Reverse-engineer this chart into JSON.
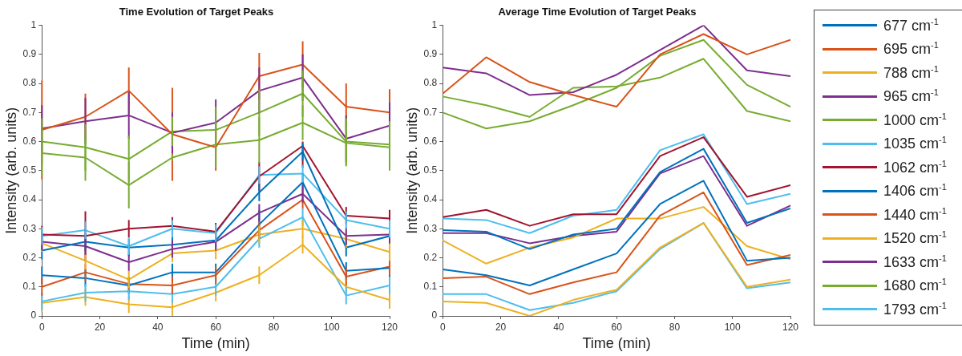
{
  "chart_data": [
    {
      "type": "line",
      "title": "Time Evolution of Target Peaks",
      "xlabel": "Time (min)",
      "ylabel": "Intensity (arb. units)",
      "x": [
        0,
        15,
        30,
        45,
        60,
        75,
        90,
        105,
        120
      ],
      "xlim": [
        0,
        120
      ],
      "xticks": [
        0,
        20,
        40,
        60,
        80,
        100,
        120
      ],
      "ylim": [
        0,
        1
      ],
      "yticks": [
        0,
        0.1,
        0.2,
        0.3,
        0.4,
        0.5,
        0.6,
        0.7,
        0.8,
        0.9,
        1
      ],
      "grid": false,
      "legend": false,
      "marker": "none",
      "line_style": "solid",
      "series": [
        {
          "color": "#0072bd",
          "values": [
            0.14,
            0.13,
            0.105,
            0.15,
            0.15,
            0.315,
            0.46,
            0.155,
            0.165
          ],
          "errors": [
            0.03,
            0.03,
            0.03,
            0.03,
            0.03,
            0.05,
            0.03,
            0.03,
            0.03
          ]
        },
        {
          "color": "#d95319",
          "values": [
            0.64,
            0.685,
            0.775,
            0.625,
            0.58,
            0.825,
            0.865,
            0.72,
            0.7
          ],
          "errors": [
            0.17,
            0.08,
            0.08,
            0.16,
            0.08,
            0.08,
            0.08,
            0.08,
            0.08
          ]
        },
        {
          "color": "#edb120",
          "values": [
            0.045,
            0.065,
            0.04,
            0.03,
            0.08,
            0.14,
            0.245,
            0.1,
            0.055
          ],
          "errors": [
            0.03,
            0.03,
            0.03,
            0.03,
            0.03,
            0.03,
            0.03,
            0.02,
            0.03
          ]
        },
        {
          "color": "#7e2f8e",
          "values": [
            0.645,
            0.67,
            0.69,
            0.63,
            0.665,
            0.775,
            0.82,
            0.61,
            0.655
          ],
          "errors": [
            0.08,
            0.08,
            0.08,
            0.07,
            0.08,
            0.08,
            0.08,
            0.08,
            0.08
          ]
        },
        {
          "color": "#77ac30",
          "values": [
            0.6,
            0.58,
            0.54,
            0.635,
            0.64,
            0.7,
            0.765,
            0.6,
            0.59
          ],
          "errors": [
            0.08,
            0.08,
            0.08,
            0.05,
            0.08,
            0.08,
            0.08,
            0.08,
            0.08
          ]
        },
        {
          "color": "#4dbeee",
          "values": [
            0.05,
            0.08,
            0.085,
            0.075,
            0.1,
            0.265,
            0.34,
            0.07,
            0.105
          ],
          "errors": [
            0.03,
            0.03,
            0.03,
            0.03,
            0.03,
            0.03,
            0.03,
            0.03,
            0.03
          ]
        },
        {
          "color": "#a2142f",
          "values": [
            0.28,
            0.275,
            0.3,
            0.31,
            0.29,
            0.48,
            0.585,
            0.345,
            0.335
          ],
          "errors": [
            0.03,
            0.085,
            0.03,
            0.03,
            0.03,
            0.05,
            [
              0.51,
              0.6
            ],
            0.03,
            0.03
          ]
        },
        {
          "color": "#0072bd",
          "values": [
            0.225,
            0.255,
            0.235,
            0.245,
            0.26,
            0.425,
            0.565,
            0.235,
            0.275
          ],
          "errors": [
            0.03,
            0.03,
            0.03,
            0.03,
            0.03,
            0.03,
            0.03,
            0.03,
            0.03
          ]
        },
        {
          "color": "#d95319",
          "values": [
            0.1,
            0.15,
            0.11,
            0.105,
            0.14,
            0.295,
            0.4,
            0.135,
            0.17
          ],
          "errors": [
            0.03,
            0.03,
            0.02,
            0.03,
            0.03,
            0.03,
            0.03,
            0.03,
            0.03
          ]
        },
        {
          "color": "#edb120",
          "values": [
            0.25,
            0.19,
            0.125,
            0.215,
            0.225,
            0.28,
            0.3,
            0.265,
            0.22
          ],
          "errors": [
            0.03,
            0.03,
            0.03,
            0.03,
            0.03,
            0.03,
            0.03,
            0.03,
            0.03
          ]
        },
        {
          "color": "#7e2f8e",
          "values": [
            0.255,
            0.24,
            0.185,
            0.23,
            0.255,
            0.355,
            0.42,
            0.275,
            0.28
          ],
          "errors": [
            0.03,
            0.03,
            0.03,
            0.03,
            0.03,
            0.03,
            0.03,
            0.03,
            0.03
          ]
        },
        {
          "color": "#77ac30",
          "values": [
            0.56,
            0.545,
            0.45,
            0.545,
            0.59,
            0.605,
            0.665,
            0.595,
            0.58
          ],
          "errors": [
            0.08,
            0.08,
            0.08,
            0.01,
            0.08,
            0.08,
            0.06,
            0.08,
            0.08
          ]
        },
        {
          "color": "#4dbeee",
          "values": [
            0.275,
            0.295,
            0.24,
            0.3,
            0.285,
            0.485,
            0.49,
            0.33,
            0.3
          ],
          "errors": [
            0.03,
            0.03,
            0.03,
            0.03,
            0.03,
            0.03,
            0.03,
            0.03,
            0.03
          ]
        }
      ]
    },
    {
      "type": "line",
      "title": "Average Time Evolution of Target Peaks",
      "xlabel": "Time (min)",
      "ylabel": "Intensity (arb. units)",
      "x": [
        0,
        15,
        30,
        45,
        60,
        75,
        90,
        105,
        120
      ],
      "xlim": [
        0,
        120
      ],
      "xticks": [
        0,
        20,
        40,
        60,
        80,
        100,
        120
      ],
      "ylim": [
        0,
        1
      ],
      "yticks": [
        0,
        0.1,
        0.2,
        0.3,
        0.4,
        0.5,
        0.6,
        0.7,
        0.8,
        0.9,
        1
      ],
      "grid": false,
      "legend": "right",
      "marker": "none",
      "line_style": "solid",
      "series": [
        {
          "name": "677 cm$^{-1}$",
          "color": "#0072bd",
          "values": [
            0.16,
            0.14,
            0.105,
            0.16,
            0.215,
            0.385,
            0.465,
            0.19,
            0.2
          ]
        },
        {
          "name": "695 cm$^{-1}$",
          "color": "#d95319",
          "values": [
            0.765,
            0.89,
            0.805,
            0.76,
            0.72,
            0.9,
            0.97,
            0.9,
            0.95
          ]
        },
        {
          "name": "788 cm$^{-1}$",
          "color": "#edb120",
          "values": [
            0.05,
            0.045,
            0,
            0.055,
            0.09,
            0.235,
            0.32,
            0.1,
            0.125
          ]
        },
        {
          "name": "965 cm$^{-1}$",
          "color": "#7e2f8e",
          "values": [
            0.855,
            0.835,
            0.76,
            0.77,
            0.83,
            0.915,
            1,
            0.845,
            0.825
          ]
        },
        {
          "name": "1000 cm$^{-1}$",
          "color": "#77ac30",
          "values": [
            0.755,
            0.725,
            0.685,
            0.785,
            0.79,
            0.82,
            0.885,
            0.705,
            0.67
          ]
        },
        {
          "name": "1035 cm$^{-1}$",
          "color": "#4dbeee",
          "values": [
            0.075,
            0.075,
            0.02,
            0.045,
            0.085,
            0.23,
            0.32,
            0.095,
            0.115
          ]
        },
        {
          "name": "1062 cm$^{-1}$",
          "color": "#a2142f",
          "values": [
            0.34,
            0.365,
            0.31,
            0.35,
            0.35,
            0.55,
            0.615,
            0.41,
            0.45
          ]
        },
        {
          "name": "1406 cm$^{-1}$",
          "color": "#0072bd",
          "values": [
            0.295,
            0.29,
            0.23,
            0.28,
            0.3,
            0.495,
            0.575,
            0.32,
            0.37
          ]
        },
        {
          "name": "1440 cm$^{-1}$",
          "color": "#d95319",
          "values": [
            0.13,
            0.135,
            0.075,
            0.115,
            0.15,
            0.345,
            0.425,
            0.175,
            0.21
          ]
        },
        {
          "name": "1520 cm$^{-1}$",
          "color": "#edb120",
          "values": [
            0.26,
            0.18,
            0.235,
            0.27,
            0.335,
            0.335,
            0.375,
            0.24,
            0.195
          ]
        },
        {
          "name": "1633 cm$^{-1}$",
          "color": "#7e2f8e",
          "values": [
            0.285,
            0.285,
            0.25,
            0.275,
            0.29,
            0.49,
            0.55,
            0.31,
            0.38
          ]
        },
        {
          "name": "1680 cm$^{-1}$",
          "color": "#77ac30",
          "values": [
            0.7,
            0.645,
            0.67,
            0.725,
            0.785,
            0.895,
            0.95,
            0.795,
            0.72
          ]
        },
        {
          "name": "1793 cm$^{-1}$",
          "color": "#4dbeee",
          "values": [
            0.335,
            0.33,
            0.285,
            0.345,
            0.365,
            0.57,
            0.625,
            0.385,
            0.42
          ]
        }
      ]
    }
  ]
}
